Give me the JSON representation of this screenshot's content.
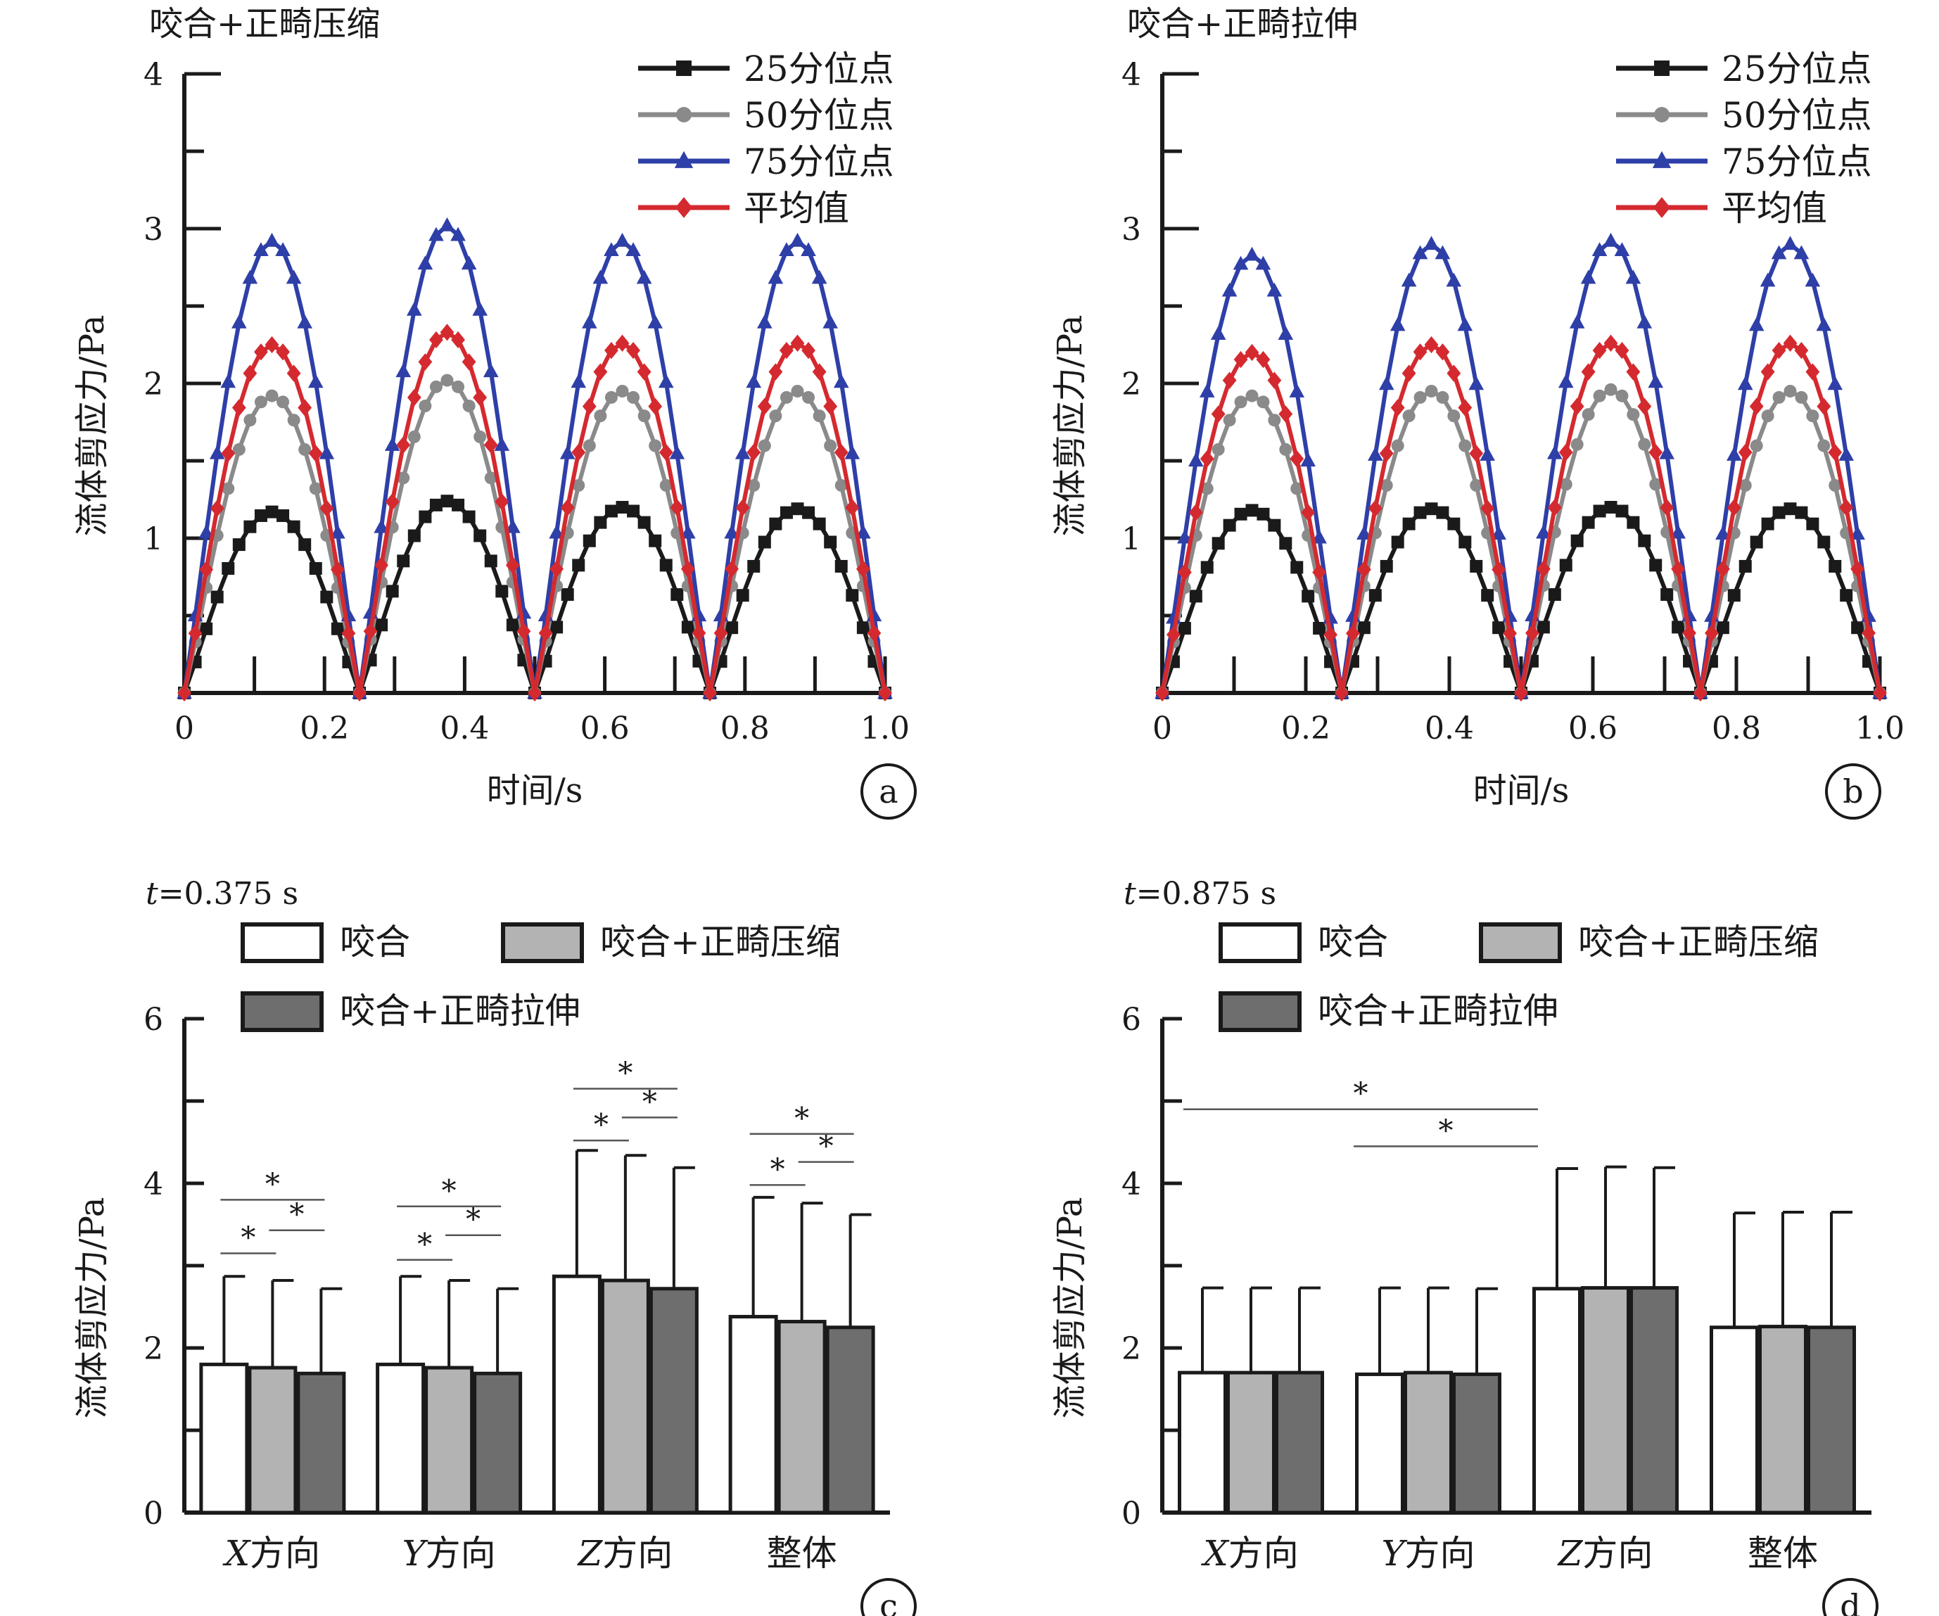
{
  "figure": {
    "panel_a_label": "a",
    "panel_b_label": "b",
    "panel_c_label": "c",
    "panel_d_label": "d"
  },
  "colors": {
    "q25": "#1a1a1a",
    "q50": "#8a8a8a",
    "q75": "#2e3fa8",
    "mean": "#d42a2f",
    "bite": "#ffffff",
    "compress": "#b3b3b3",
    "stretch": "#6e6e6e",
    "axis": "#1a1a1a"
  },
  "chart_data": [
    {
      "type": "line",
      "title": "咬合+正畸压缩",
      "xlabel": "时间/s",
      "ylabel": "流体剪应力/Pa",
      "xlim": [
        0,
        1.0
      ],
      "ylim": [
        0,
        4
      ],
      "xticks": [
        "0",
        "0.2",
        "0.4",
        "0.6",
        "0.8",
        "1.0"
      ],
      "yticks": [
        "1",
        "2",
        "3",
        "4"
      ],
      "legend": "top-right",
      "cycle_peaks": {
        "25分位点": [
          1.17,
          1.24,
          1.2,
          1.19
        ],
        "50分位点": [
          1.92,
          2.02,
          1.95,
          1.95
        ],
        "75分位点": [
          2.92,
          3.02,
          2.92,
          2.92
        ],
        "平均值": [
          2.25,
          2.33,
          2.26,
          2.26
        ]
      },
      "series": [
        {
          "name": "25分位点",
          "color_key": "q25",
          "marker": "square"
        },
        {
          "name": "50分位点",
          "color_key": "q50",
          "marker": "circle"
        },
        {
          "name": "75分位点",
          "color_key": "q75",
          "marker": "triangle"
        },
        {
          "name": "平均值",
          "color_key": "mean",
          "marker": "diamond"
        }
      ]
    },
    {
      "type": "line",
      "title": "咬合+正畸拉伸",
      "xlabel": "时间/s",
      "ylabel": "流体剪应力/Pa",
      "xlim": [
        0,
        1.0
      ],
      "ylim": [
        0,
        4
      ],
      "xticks": [
        "0",
        "0.2",
        "0.4",
        "0.6",
        "0.8",
        "1.0"
      ],
      "yticks": [
        "1",
        "2",
        "3",
        "4"
      ],
      "legend": "top-right",
      "cycle_peaks": {
        "25分位点": [
          1.18,
          1.19,
          1.2,
          1.19
        ],
        "50分位点": [
          1.92,
          1.95,
          1.96,
          1.95
        ],
        "75分位点": [
          2.83,
          2.9,
          2.92,
          2.9
        ],
        "平均值": [
          2.2,
          2.25,
          2.26,
          2.26
        ]
      },
      "series": [
        {
          "name": "25分位点",
          "color_key": "q25",
          "marker": "square"
        },
        {
          "name": "50分位点",
          "color_key": "q50",
          "marker": "circle"
        },
        {
          "name": "75分位点",
          "color_key": "q75",
          "marker": "triangle"
        },
        {
          "name": "平均值",
          "color_key": "mean",
          "marker": "diamond"
        }
      ]
    },
    {
      "type": "bar",
      "subtitle": "t=0.375 s",
      "subtitle_var": "t",
      "subtitle_rest": "=0.375 s",
      "ylabel": "流体剪应力/Pa",
      "ylim": [
        0,
        6
      ],
      "yticks": [
        "0",
        "2",
        "4",
        "6"
      ],
      "categories": [
        "X方向",
        "Y方向",
        "Z方向",
        "整体"
      ],
      "category_vars": [
        "X",
        "Y",
        "Z",
        ""
      ],
      "category_rest": [
        "方向",
        "方向",
        "方向",
        "整体"
      ],
      "legend": "top-left",
      "series": [
        {
          "name": "咬合",
          "color_key": "bite",
          "values": [
            1.8,
            1.8,
            2.87,
            2.38
          ],
          "err_top": [
            2.87,
            2.87,
            4.4,
            3.83
          ]
        },
        {
          "name": "咬合+正畸压缩",
          "color_key": "compress",
          "values": [
            1.76,
            1.76,
            2.82,
            2.32
          ],
          "err_top": [
            2.82,
            2.82,
            4.34,
            3.76
          ]
        },
        {
          "name": "咬合+正畸拉伸",
          "color_key": "stretch",
          "values": [
            1.69,
            1.69,
            2.72,
            2.25
          ],
          "err_top": [
            2.72,
            2.72,
            4.19,
            3.62
          ]
        }
      ],
      "significance": [
        {
          "group": 0,
          "from": 0,
          "to": 1,
          "y": 3.15,
          "label": "*"
        },
        {
          "group": 0,
          "from": 1,
          "to": 2,
          "y": 3.43,
          "label": "*"
        },
        {
          "group": 0,
          "from": 0,
          "to": 2,
          "y": 3.8,
          "label": "*"
        },
        {
          "group": 1,
          "from": 0,
          "to": 1,
          "y": 3.07,
          "label": "*"
        },
        {
          "group": 1,
          "from": 1,
          "to": 2,
          "y": 3.37,
          "label": "*"
        },
        {
          "group": 1,
          "from": 0,
          "to": 2,
          "y": 3.72,
          "label": "*"
        },
        {
          "group": 2,
          "from": 0,
          "to": 1,
          "y": 4.52,
          "label": "*"
        },
        {
          "group": 2,
          "from": 1,
          "to": 2,
          "y": 4.8,
          "label": "*"
        },
        {
          "group": 2,
          "from": 0,
          "to": 2,
          "y": 5.15,
          "label": "*"
        },
        {
          "group": 3,
          "from": 0,
          "to": 1,
          "y": 3.98,
          "label": "*"
        },
        {
          "group": 3,
          "from": 1,
          "to": 2,
          "y": 4.26,
          "label": "*"
        },
        {
          "group": 3,
          "from": 0,
          "to": 2,
          "y": 4.6,
          "label": "*"
        }
      ]
    },
    {
      "type": "bar",
      "subtitle": "t=0.875 s",
      "subtitle_var": "t",
      "subtitle_rest": "=0.875 s",
      "ylabel": "流体剪应力/Pa",
      "ylim": [
        0,
        6
      ],
      "yticks": [
        "0",
        "2",
        "4",
        "6"
      ],
      "categories": [
        "X方向",
        "Y方向",
        "Z方向",
        "整体"
      ],
      "category_vars": [
        "X",
        "Y",
        "Z",
        ""
      ],
      "category_rest": [
        "方向",
        "方向",
        "方向",
        "整体"
      ],
      "legend": "top-left",
      "series": [
        {
          "name": "咬合",
          "color_key": "bite",
          "values": [
            1.7,
            1.68,
            2.72,
            2.25
          ],
          "err_top": [
            2.73,
            2.73,
            4.18,
            3.64
          ]
        },
        {
          "name": "咬合+正畸压缩",
          "color_key": "compress",
          "values": [
            1.7,
            1.7,
            2.73,
            2.26
          ],
          "err_top": [
            2.73,
            2.73,
            4.2,
            3.65
          ]
        },
        {
          "name": "咬合+正畸拉伸",
          "color_key": "stretch",
          "values": [
            1.7,
            1.68,
            2.73,
            2.25
          ],
          "err_top": [
            2.73,
            2.72,
            4.19,
            3.65
          ]
        }
      ],
      "significance": [
        {
          "from_group": 0,
          "to_group": 2,
          "y": 4.9,
          "label": "*"
        },
        {
          "from_group": 1,
          "to_group": 2,
          "y": 4.45,
          "label": "*"
        }
      ]
    }
  ]
}
